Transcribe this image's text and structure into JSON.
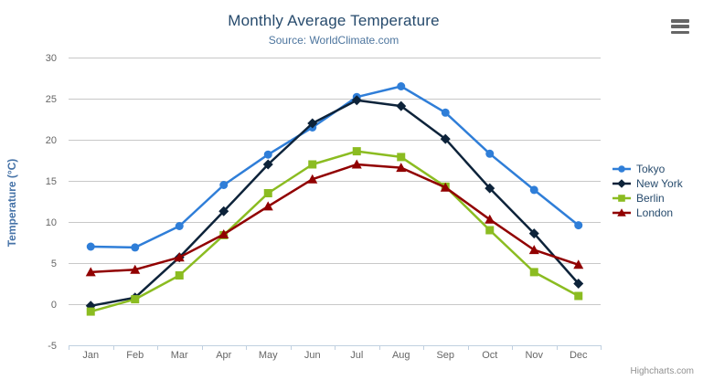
{
  "chart": {
    "title": "Monthly Average Temperature",
    "subtitle": "Source: WorldClimate.com",
    "y_axis_title": "Temperature (°C)",
    "credits": "Highcharts.com"
  },
  "colors": {
    "title": "#274b6d",
    "subtitle": "#4d759e",
    "axis_title": "#4572a7",
    "axis_label": "#666666",
    "gridline": "#c8c8c8",
    "axis_line": "#c0d0e0",
    "legend_text": "#274b6d",
    "credits_text": "#909090"
  },
  "chart_data": {
    "type": "line",
    "title": "Monthly Average Temperature",
    "subtitle": "Source: WorldClimate.com",
    "xlabel": "",
    "ylabel": "Temperature (°C)",
    "ylim": [
      -5,
      30
    ],
    "ytick_step": 5,
    "grid": true,
    "legend_position": "right",
    "categories": [
      "Jan",
      "Feb",
      "Mar",
      "Apr",
      "May",
      "Jun",
      "Jul",
      "Aug",
      "Sep",
      "Oct",
      "Nov",
      "Dec"
    ],
    "series": [
      {
        "name": "Tokyo",
        "color": "#2f7ed8",
        "marker": "circle",
        "values": [
          7.0,
          6.9,
          9.5,
          14.5,
          18.2,
          21.5,
          25.2,
          26.5,
          23.3,
          18.3,
          13.9,
          9.6
        ]
      },
      {
        "name": "New York",
        "color": "#0d233a",
        "marker": "diamond",
        "values": [
          -0.2,
          0.8,
          5.7,
          11.3,
          17.0,
          22.0,
          24.8,
          24.1,
          20.1,
          14.1,
          8.6,
          2.5
        ]
      },
      {
        "name": "Berlin",
        "color": "#8bbc21",
        "marker": "square",
        "values": [
          -0.9,
          0.6,
          3.5,
          8.4,
          13.5,
          17.0,
          18.6,
          17.9,
          14.3,
          9.0,
          3.9,
          1.0
        ]
      },
      {
        "name": "London",
        "color": "#910000",
        "marker": "triangle",
        "values": [
          3.9,
          4.2,
          5.7,
          8.5,
          11.9,
          15.2,
          17.0,
          16.6,
          14.2,
          10.3,
          6.6,
          4.8
        ]
      }
    ]
  }
}
